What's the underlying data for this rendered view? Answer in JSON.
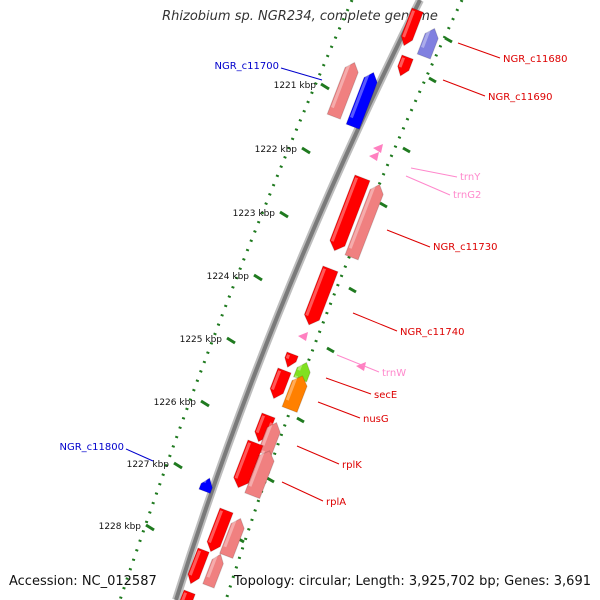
{
  "title": "Rhizobium sp. NGR234, complete genome",
  "footer": {
    "accession": "Accession: NC_012587",
    "summary": "Topology: circular; Length: 3,925,702 bp; Genes: 3,691"
  },
  "colors": {
    "backbone": "#7a7a7a",
    "tick": "#1f7a1f",
    "gene_red": "#ff0000",
    "gene_pink": "#f08080",
    "gene_blue": "#0000ff",
    "gene_lavender": "#8080e0",
    "trna": "#ff80c0",
    "secE": "#80e020",
    "nusG": "#ff8000",
    "label_red": "#dd0000",
    "label_blue": "#0000cc",
    "label_pink": "#ff88cc"
  },
  "ticks": [
    {
      "label": "1221 kbp",
      "at": 0
    },
    {
      "label": "1222 kbp",
      "at": 1
    },
    {
      "label": "1223 kbp",
      "at": 2
    },
    {
      "label": "1224 kbp",
      "at": 3
    },
    {
      "label": "1225 kbp",
      "at": 4
    },
    {
      "label": "1226 kbp",
      "at": 5
    },
    {
      "label": "1227 kbp",
      "at": 6
    },
    {
      "label": "1228 kbp",
      "at": 7
    }
  ],
  "gene_labels": [
    {
      "name": "NGR_c11680",
      "kind": "red"
    },
    {
      "name": "NGR_c11690",
      "kind": "red"
    },
    {
      "name": "NGR_c11700",
      "kind": "blue"
    },
    {
      "name": "trnY",
      "kind": "pink"
    },
    {
      "name": "trnG2",
      "kind": "pink"
    },
    {
      "name": "NGR_c11730",
      "kind": "red"
    },
    {
      "name": "NGR_c11740",
      "kind": "red"
    },
    {
      "name": "trnW",
      "kind": "pink"
    },
    {
      "name": "secE",
      "kind": "red"
    },
    {
      "name": "nusG",
      "kind": "red"
    },
    {
      "name": "rplK",
      "kind": "red"
    },
    {
      "name": "rplA",
      "kind": "red"
    },
    {
      "name": "NGR_c11800",
      "kind": "blue"
    }
  ]
}
